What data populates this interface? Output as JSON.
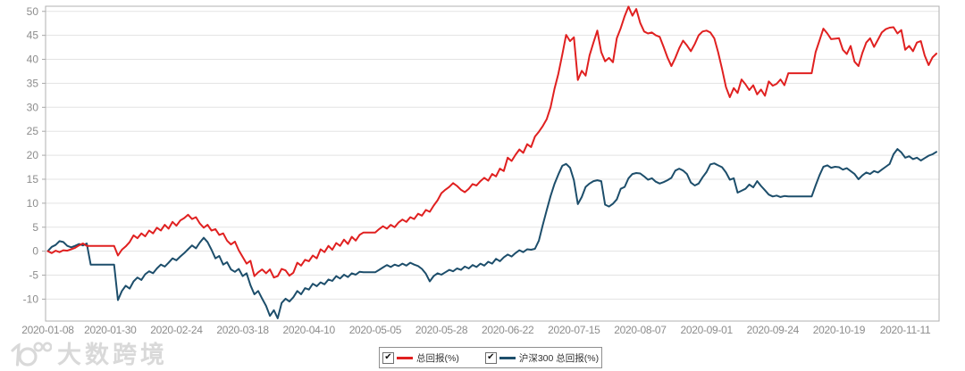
{
  "chart_data": {
    "type": "line",
    "title": "",
    "xlabel": "",
    "ylabel": "",
    "grid": "horizontal",
    "legend_position": "bottom-center",
    "y_ticks": [
      50,
      45,
      40,
      35,
      30,
      25,
      20,
      15,
      10,
      5,
      0,
      -5,
      -10
    ],
    "ylim": [
      -14.57,
      51.07
    ],
    "n_points": 229,
    "x_tick_labels": [
      "2020-01-08",
      "2020-01-30",
      "2020-02-24",
      "2020-03-18",
      "2020-04-10",
      "2020-05-05",
      "2020-05-28",
      "2020-06-22",
      "2020-07-15",
      "2020-08-07",
      "2020-09-01",
      "2020-09-24",
      "2020-10-19",
      "2020-11-11"
    ],
    "x_tick_indices": [
      0,
      16,
      33,
      50,
      67,
      84,
      101,
      118,
      135,
      152,
      169,
      186,
      203,
      220
    ],
    "series": [
      {
        "name": "总回报(%)",
        "color": "#e02020",
        "values": [
          0,
          -0.4,
          0.1,
          -0.2,
          0.2,
          0.1,
          0.4,
          0.7,
          1.2,
          1.6,
          1.1,
          1.1,
          1.1,
          1.1,
          1.1,
          1.1,
          1.1,
          1.1,
          -0.9,
          0.3,
          1.0,
          1.9,
          3.3,
          2.7,
          3.7,
          3.1,
          4.3,
          3.7,
          4.9,
          4.3,
          5.5,
          4.7,
          6.1,
          5.3,
          6.4,
          6.9,
          7.6,
          6.7,
          7.1,
          5.8,
          4.9,
          5.5,
          4.3,
          4.6,
          3.4,
          3.7,
          2.2,
          1.4,
          2.0,
          0.2,
          -1.2,
          -2.6,
          -2.0,
          -5.2,
          -4.4,
          -3.8,
          -4.6,
          -3.8,
          -5.5,
          -5.2,
          -3.7,
          -4.0,
          -5.1,
          -4.5,
          -2.4,
          -3.0,
          -1.8,
          -2.1,
          -0.9,
          -1.5,
          0.4,
          -0.2,
          1.1,
          0.3,
          1.7,
          1.1,
          2.4,
          1.5,
          3.0,
          2.2,
          3.4,
          3.9,
          3.9,
          3.9,
          3.9,
          4.6,
          5.2,
          4.7,
          5.5,
          5.0,
          6.0,
          6.6,
          6.1,
          7.1,
          6.7,
          7.8,
          7.4,
          8.6,
          8.2,
          9.5,
          10.6,
          12.1,
          12.8,
          13.4,
          14.2,
          13.6,
          12.8,
          12.3,
          13.0,
          14.0,
          13.7,
          14.6,
          15.3,
          14.7,
          16.1,
          15.6,
          17.2,
          16.7,
          19.5,
          18.8,
          20.1,
          21.2,
          20.5,
          22.3,
          21.7,
          23.9,
          24.9,
          26.1,
          27.5,
          30.0,
          33.8,
          37.0,
          41.0,
          45.1,
          43.8,
          44.6,
          35.7,
          37.6,
          36.6,
          40.8,
          43.5,
          46.0,
          41.5,
          39.6,
          40.3,
          39.4,
          44.4,
          46.5,
          49.0,
          51.0,
          49.1,
          50.5,
          47.6,
          45.8,
          45.4,
          45.6,
          45.0,
          44.7,
          42.6,
          40.4,
          38.6,
          40.3,
          42.3,
          43.9,
          42.9,
          41.7,
          43.2,
          45.0,
          45.8,
          46.0,
          45.6,
          44.4,
          41.5,
          38.0,
          34.2,
          32.1,
          34.0,
          33.0,
          35.8,
          34.8,
          33.6,
          34.6,
          32.7,
          33.7,
          32.4,
          35.4,
          34.5,
          34.9,
          35.8,
          34.6,
          37.1,
          37.1,
          37.1,
          37.1,
          37.1,
          37.1,
          37.1,
          41.5,
          43.9,
          46.4,
          45.4,
          44.2,
          44.3,
          44.4,
          42.0,
          41.1,
          42.8,
          39.5,
          38.6,
          41.3,
          43.5,
          44.4,
          42.6,
          44.1,
          45.6,
          46.3,
          46.6,
          46.7,
          45.4,
          46.1,
          42.0,
          42.8,
          41.7,
          43.5,
          43.8,
          40.8,
          38.8,
          40.4,
          41.2
        ]
      },
      {
        "name": "沪深300 总回报(%)",
        "color": "#1d4e6b",
        "values": [
          0,
          0.9,
          1.3,
          2.1,
          1.9,
          1.1,
          0.8,
          1.1,
          1.5,
          1.2,
          1.6,
          -2.8,
          -2.8,
          -2.8,
          -2.8,
          -2.8,
          -2.8,
          -2.8,
          -10.2,
          -8.3,
          -7.2,
          -7.8,
          -6.3,
          -5.5,
          -6.0,
          -4.8,
          -4.2,
          -4.6,
          -3.6,
          -2.8,
          -3.2,
          -2.4,
          -1.5,
          -1.9,
          -1.1,
          -0.4,
          0.4,
          1.2,
          0.6,
          1.8,
          2.8,
          1.9,
          0.3,
          -1.5,
          -1.0,
          -2.8,
          -2.3,
          -3.8,
          -4.3,
          -3.7,
          -5.2,
          -4.6,
          -7.1,
          -9.0,
          -8.3,
          -9.9,
          -11.4,
          -13.5,
          -12.3,
          -14.0,
          -10.8,
          -9.9,
          -10.5,
          -9.6,
          -8.3,
          -9.0,
          -7.7,
          -8.0,
          -6.8,
          -7.3,
          -6.5,
          -6.9,
          -5.9,
          -6.2,
          -5.2,
          -5.7,
          -4.9,
          -5.4,
          -4.6,
          -4.9,
          -4.3,
          -4.4,
          -4.4,
          -4.4,
          -4.4,
          -3.9,
          -3.4,
          -2.9,
          -3.3,
          -2.8,
          -3.1,
          -2.6,
          -3.0,
          -2.4,
          -2.8,
          -3.1,
          -3.7,
          -4.7,
          -6.3,
          -5.2,
          -4.6,
          -4.9,
          -4.4,
          -3.9,
          -4.2,
          -3.6,
          -3.9,
          -3.2,
          -3.6,
          -2.9,
          -3.3,
          -2.6,
          -3.0,
          -2.2,
          -2.6,
          -1.6,
          -2.1,
          -1.3,
          -0.7,
          -1.1,
          -0.4,
          0.2,
          -0.2,
          0.4,
          0.3,
          0.5,
          2.2,
          5.5,
          8.5,
          11.5,
          14.0,
          16.0,
          17.8,
          18.2,
          17.4,
          14.8,
          9.8,
          11.3,
          13.4,
          14.1,
          14.6,
          14.8,
          14.6,
          9.7,
          9.3,
          9.9,
          10.8,
          13.0,
          13.4,
          15.2,
          16.1,
          16.3,
          16.2,
          15.6,
          14.9,
          15.2,
          14.5,
          14.1,
          14.4,
          14.8,
          15.3,
          16.8,
          17.2,
          16.8,
          16.1,
          14.3,
          13.7,
          14.1,
          15.4,
          16.5,
          18.1,
          18.3,
          17.9,
          17.5,
          16.4,
          14.9,
          15.2,
          12.2,
          12.6,
          13.0,
          13.9,
          13.3,
          14.6,
          13.6,
          12.7,
          11.8,
          11.4,
          11.6,
          11.3,
          11.5,
          11.4,
          11.4,
          11.4,
          11.4,
          11.4,
          11.4,
          11.4,
          13.7,
          15.8,
          17.6,
          17.9,
          17.4,
          17.6,
          17.5,
          17.0,
          17.3,
          16.7,
          16.1,
          15.0,
          15.8,
          16.4,
          16.1,
          16.7,
          16.4,
          17.0,
          17.6,
          18.2,
          20.2,
          21.3,
          20.6,
          19.5,
          19.8,
          19.2,
          19.5,
          18.9,
          19.4,
          19.9,
          20.2,
          20.7
        ]
      }
    ]
  },
  "axis": {
    "label_color": "#8c8c8c",
    "grid_color": "#e3e3e3",
    "border_color": "#b0b0b0",
    "tick_color": "#a8a8a8"
  },
  "legend": {
    "checkmark": "✔",
    "items": [
      {
        "label": "总回报(%)",
        "color": "#e02020",
        "checked": true
      },
      {
        "label": "沪深300 总回报(%)",
        "color": "#1d4e6b",
        "checked": true
      }
    ]
  },
  "watermark": {
    "text": "大数跨境",
    "color": "#d9d9d9"
  }
}
